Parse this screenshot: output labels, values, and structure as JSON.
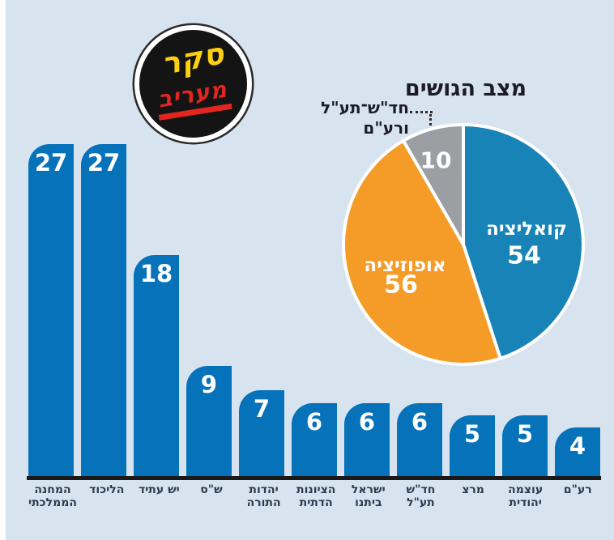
{
  "page": {
    "background_color": "#d7e4f0"
  },
  "logo": {
    "top_word": "סקר",
    "bottom_word": "מעריב",
    "top_color": "#fdd10c",
    "bottom_color": "#e2261f"
  },
  "chart_data": [
    {
      "type": "bar",
      "categories": [
        "המחנה הממלכתי",
        "הליכוד",
        "יש עתיד",
        "ש\"ס",
        "יהדות התורה",
        "הציונות הדתית",
        "ישראל ביתנו",
        "חד\"ש תע\"ל",
        "מרצ",
        "עוצמה יהודית",
        "רע\"ם"
      ],
      "category_lines": [
        [
          "המחנה",
          "הממלכתי"
        ],
        [
          "הליכוד"
        ],
        [
          "יש עתיד"
        ],
        [
          "ש\"ס"
        ],
        [
          "יהדות",
          "התורה"
        ],
        [
          "הציונות",
          "הדתית"
        ],
        [
          "ישראל",
          "ביתנו"
        ],
        [
          "חד\"ש",
          "תע\"ל"
        ],
        [
          "מרצ"
        ],
        [
          "עוצמה",
          "יהודית"
        ],
        [
          "רע\"ם"
        ]
      ],
      "values": [
        27,
        27,
        18,
        9,
        7,
        6,
        6,
        6,
        5,
        5,
        4
      ],
      "bar_color": "#0672ba",
      "value_label_color": "#ffffff",
      "ylim": [
        0,
        27
      ],
      "grid": false
    },
    {
      "type": "pie",
      "title": "מצב הגושים",
      "slices": [
        {
          "label": "קואליציה",
          "value": 54,
          "color": "#1783b7"
        },
        {
          "label": "אופוזיציה",
          "value": 56,
          "color": "#f59b28"
        },
        {
          "label": "חד\"ש־תע\"ל ורע\"ם",
          "value": 10,
          "color": "#9b9fa3"
        }
      ],
      "callout_label": {
        "line1": "חד\"ש־תע\"ל",
        "line2": "ורע\"ם"
      },
      "start_angle_deg": 0,
      "direction": "clockwise",
      "legend_position": "none"
    }
  ]
}
